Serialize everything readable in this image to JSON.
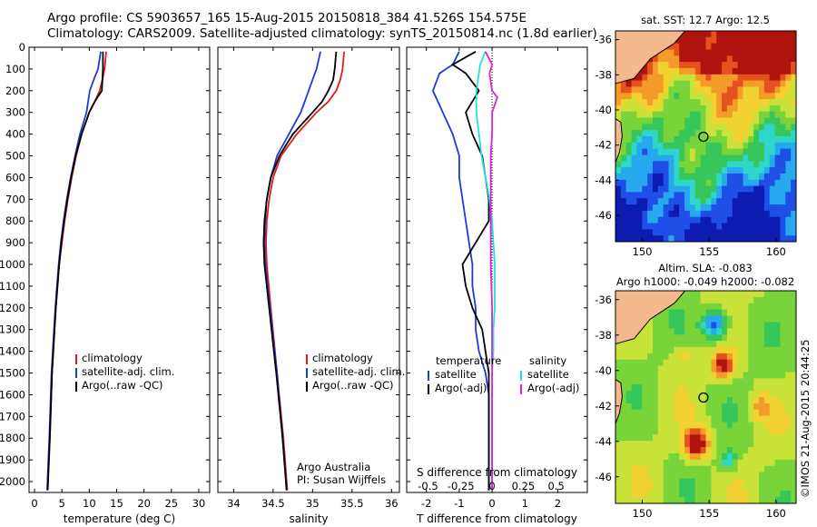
{
  "titles": {
    "line1": "Argo profile: CS 5903657_165 15-Aug-2015 20150818_384 41.526S 154.575E",
    "line2": "Climatology: CARS2009. Satellite-adjusted climatology: synTS_20150814.nc (1.8d earlier)"
  },
  "colors": {
    "climatology": "#e21b1b",
    "satellite": "#1f3ad6",
    "argo": "#000000",
    "sat_salinity": "#22e0e6",
    "argo_salinity": "#d624d6"
  },
  "depth_axis": {
    "ticks": [
      0,
      100,
      200,
      300,
      400,
      500,
      600,
      700,
      800,
      900,
      1000,
      1100,
      1200,
      1300,
      1400,
      1500,
      1600,
      1700,
      1800,
      1900,
      2000
    ],
    "range": [
      0,
      2050
    ]
  },
  "chart_data": [
    {
      "type": "line",
      "name": "temperature",
      "xlabel": "temperature (deg C)",
      "xlim": [
        -1,
        32
      ],
      "xticks": [
        0,
        5,
        10,
        15,
        20,
        25,
        30
      ],
      "legend": [
        "climatology",
        "satellite-adj. clim.",
        "Argo(..raw -QC)"
      ],
      "series": [
        {
          "name": "climatology",
          "depth": [
            20,
            100,
            150,
            200,
            250,
            300,
            400,
            500,
            600,
            700,
            800,
            900,
            1000,
            1200,
            1500,
            1800,
            2040
          ],
          "values": [
            13.1,
            12.8,
            12.4,
            11.9,
            11.0,
            10.0,
            8.6,
            7.6,
            6.8,
            6.1,
            5.5,
            5.0,
            4.5,
            3.9,
            3.2,
            2.8,
            2.4
          ]
        },
        {
          "name": "satellite-adj. clim.",
          "depth": [
            20,
            100,
            150,
            200,
            250,
            300,
            400,
            500,
            600,
            700,
            800,
            900,
            1000,
            1200,
            1500,
            1800,
            2040
          ],
          "values": [
            12.1,
            11.6,
            10.8,
            10.1,
            9.8,
            9.5,
            8.3,
            7.4,
            6.6,
            5.9,
            5.3,
            4.8,
            4.4,
            3.8,
            3.1,
            2.7,
            2.3
          ]
        },
        {
          "name": "Argo(..raw -QC)",
          "depth": [
            20,
            100,
            150,
            200,
            250,
            300,
            400,
            500,
            600,
            700,
            800,
            900,
            1000,
            1200,
            1500,
            1800,
            2040
          ],
          "values": [
            12.5,
            12.5,
            12.4,
            12.3,
            11.0,
            10.0,
            8.6,
            7.5,
            6.7,
            6.0,
            5.4,
            4.9,
            4.5,
            3.9,
            3.2,
            2.8,
            2.4
          ]
        }
      ]
    },
    {
      "type": "line",
      "name": "salinity",
      "xlabel": "salinity",
      "xlim": [
        33.8,
        36.1
      ],
      "xticks": [
        34,
        34.5,
        35,
        35.5,
        36
      ],
      "legend": [
        "climatology",
        "satellite-adj. clim.",
        "Argo(..raw -QC)"
      ],
      "annotation": [
        "Argo Australia",
        "PI: Susan Wijffels"
      ],
      "series": [
        {
          "name": "climatology",
          "depth": [
            20,
            100,
            150,
            200,
            250,
            300,
            400,
            500,
            600,
            700,
            800,
            900,
            1000,
            1200,
            1500,
            1800,
            2040
          ],
          "values": [
            35.4,
            35.38,
            35.35,
            35.3,
            35.2,
            35.05,
            34.8,
            34.6,
            34.5,
            34.45,
            34.42,
            34.41,
            34.42,
            34.47,
            34.55,
            34.63,
            34.68
          ]
        },
        {
          "name": "satellite-adj. clim.",
          "depth": [
            20,
            100,
            150,
            200,
            250,
            300,
            400,
            500,
            600,
            700,
            800,
            900,
            1000,
            1200,
            1500,
            1800,
            2040
          ],
          "values": [
            35.1,
            35.05,
            35.0,
            34.95,
            34.9,
            34.85,
            34.7,
            34.55,
            34.47,
            34.42,
            34.4,
            34.39,
            34.4,
            34.46,
            34.55,
            34.62,
            34.67
          ]
        },
        {
          "name": "Argo(..raw -QC)",
          "depth": [
            20,
            100,
            150,
            200,
            250,
            300,
            400,
            500,
            600,
            700,
            800,
            900,
            1000,
            1200,
            1500,
            1800,
            2040
          ],
          "values": [
            35.3,
            35.28,
            35.26,
            35.2,
            35.12,
            35.0,
            34.75,
            34.58,
            34.47,
            34.42,
            34.39,
            34.38,
            34.39,
            34.45,
            34.54,
            34.62,
            34.67
          ]
        }
      ]
    },
    {
      "type": "line",
      "name": "difference",
      "xlabel": "T difference from climatology",
      "xlabel_top": "S difference from climatology",
      "xlim": [
        -2.6,
        2.9
      ],
      "xticks": [
        -2,
        -1,
        0,
        1,
        2
      ],
      "xticks_top": [
        -0.5,
        -0.25,
        0,
        0.25,
        0.5
      ],
      "legend_headers": [
        "temperature",
        "salinity"
      ],
      "legend": [
        "satellite",
        "Argo(-adj)",
        "satellite",
        "Argo(-adj)"
      ],
      "series": [
        {
          "name": "temperature satellite",
          "depth": [
            20,
            80,
            120,
            200,
            300,
            400,
            500,
            600,
            700,
            800,
            900,
            1000,
            1100,
            1200,
            1300,
            1400,
            1500,
            1600,
            1800,
            2040
          ],
          "values": [
            -1.0,
            -1.2,
            -1.6,
            -1.8,
            -1.5,
            -1.2,
            -1.0,
            -1.0,
            -0.9,
            -0.8,
            -0.7,
            -0.6,
            -0.6,
            -0.5,
            -0.5,
            -0.4,
            -0.2,
            -0.1,
            -0.1,
            -0.1
          ]
        },
        {
          "name": "temperature Argo(-adj)",
          "depth": [
            20,
            80,
            120,
            200,
            300,
            400,
            500,
            600,
            700,
            800,
            900,
            1000,
            1100,
            1200,
            1300,
            1400,
            1500,
            1600,
            1800,
            2040
          ],
          "values": [
            -0.5,
            -1.2,
            -0.8,
            -0.4,
            -0.8,
            -0.6,
            -0.3,
            -0.2,
            -0.1,
            -0.1,
            -0.5,
            -0.9,
            -0.8,
            -0.6,
            -0.3,
            -0.2,
            -0.1,
            -0.1,
            -0.1,
            -0.1
          ]
        },
        {
          "name": "salinity satellite",
          "depth": [
            20,
            80,
            120,
            200,
            300,
            400,
            500,
            600,
            700,
            800,
            900,
            1000,
            1100,
            1200,
            1300,
            1400,
            1500,
            1600,
            1800,
            2040
          ],
          "values": [
            -0.05,
            -0.09,
            -0.1,
            -0.12,
            -0.12,
            -0.1,
            -0.08,
            -0.05,
            -0.02,
            0.0,
            0.01,
            0.02,
            0.02,
            0.02,
            0.01,
            0.01,
            0.0,
            0.0,
            0.0,
            0.0
          ]
        },
        {
          "name": "salinity Argo(-adj)",
          "depth": [
            20,
            80,
            120,
            200,
            230,
            300,
            400,
            500,
            600,
            700,
            800,
            900,
            1000,
            1200,
            1500,
            1800,
            2040
          ],
          "values": [
            -0.05,
            0.0,
            -0.02,
            0.0,
            0.04,
            0.0,
            0.0,
            -0.01,
            -0.01,
            -0.01,
            -0.01,
            -0.01,
            -0.01,
            0.0,
            0.0,
            0.0,
            0.0
          ]
        }
      ]
    },
    {
      "type": "heatmap",
      "name": "sst-map",
      "title": "sat. SST: 12.7 Argo: 12.5",
      "xlim": [
        148,
        161.5
      ],
      "ylim": [
        -47.5,
        -35.5
      ],
      "xticks": [
        150,
        155,
        160
      ],
      "yticks": [
        -36,
        -38,
        -40,
        -42,
        -44,
        -46
      ],
      "float_position": {
        "lon": 154.575,
        "lat": -41.526
      }
    },
    {
      "type": "heatmap",
      "name": "sla-map",
      "title": "Altim. SLA: -0.083",
      "subtitle": "Argo h1000: -0.049 h2000: -0.082",
      "xlim": [
        148,
        161.5
      ],
      "ylim": [
        -47.5,
        -35.5
      ],
      "xticks": [
        150,
        155,
        160
      ],
      "yticks": [
        -36,
        -38,
        -40,
        -42,
        -44,
        -46
      ],
      "float_position": {
        "lon": 154.575,
        "lat": -41.526
      }
    }
  ],
  "credit": "©IMOS 21-Aug-2015 20:44:25"
}
